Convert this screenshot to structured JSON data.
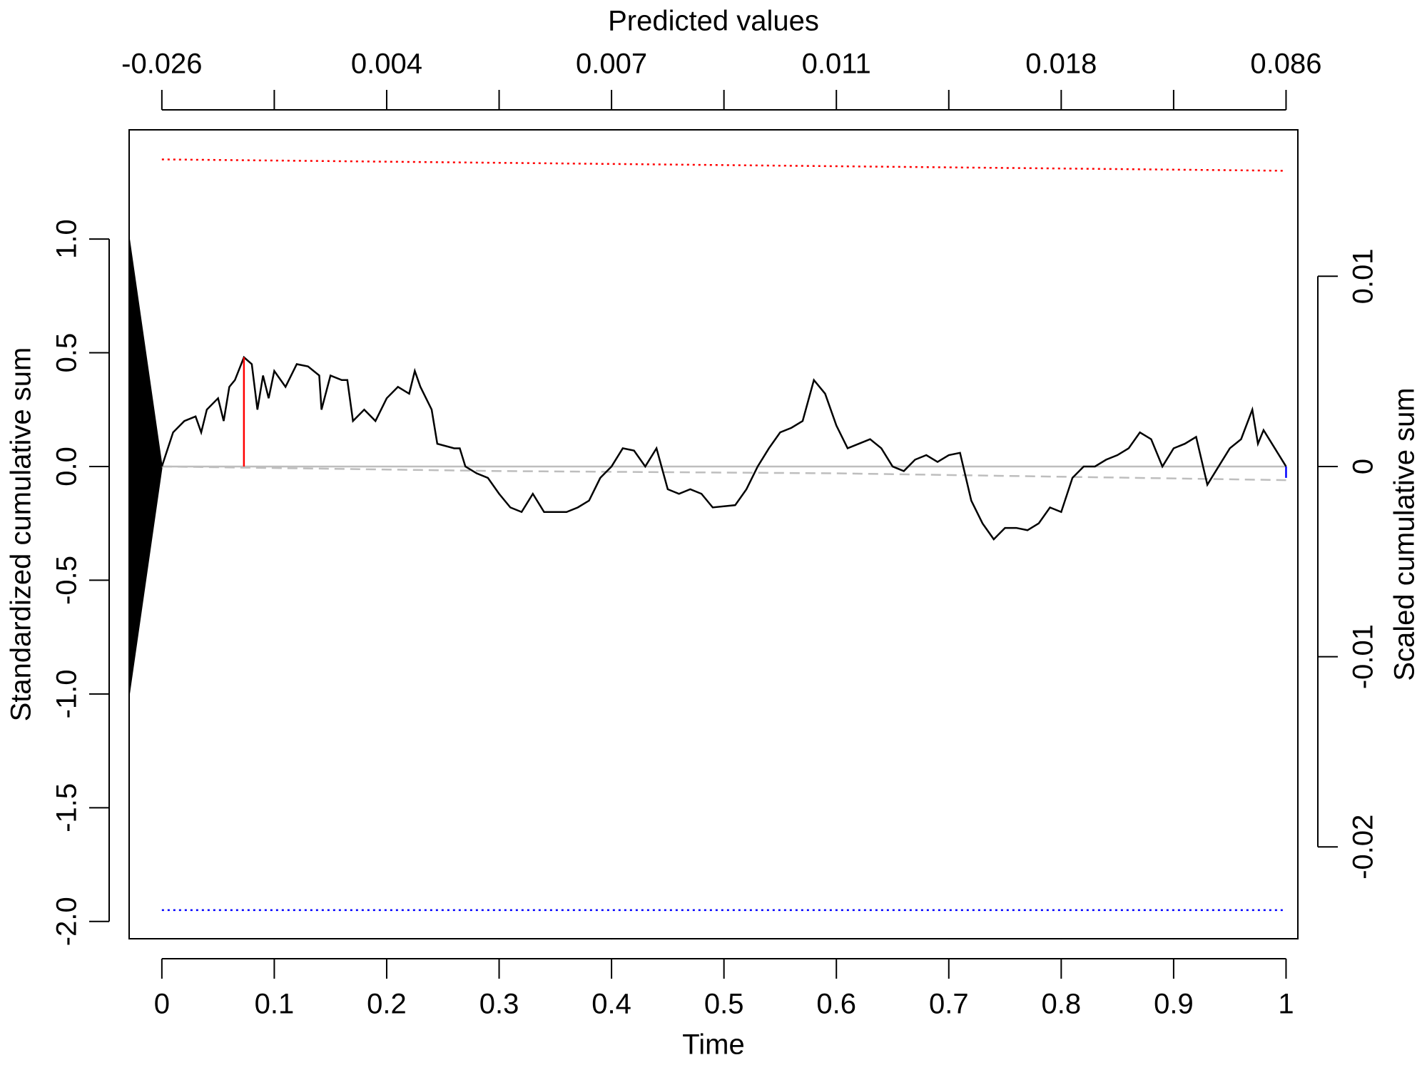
{
  "chart_data": {
    "type": "line",
    "xlabel": "Time",
    "x2label": "Predicted values",
    "ylabel": "Standardized cumulative sum",
    "y2label": "Scaled cumulative sum",
    "xlim": [
      -0.0291,
      1.0105
    ],
    "xticks": [
      0,
      0.1,
      0.2,
      0.3,
      0.4,
      0.5,
      0.6,
      0.7,
      0.8,
      0.9,
      1
    ],
    "x2ticks": [
      {
        "value": 0,
        "label": "-0.026"
      },
      {
        "value": 0.1,
        "label": null
      },
      {
        "value": 0.2,
        "label": "0.004"
      },
      {
        "value": 0.3,
        "label": null
      },
      {
        "value": 0.4,
        "label": "0.007"
      },
      {
        "value": 0.5,
        "label": null
      },
      {
        "value": 0.6,
        "label": "0.011"
      },
      {
        "value": 0.7,
        "label": null
      },
      {
        "value": 0.8,
        "label": "0.018"
      },
      {
        "value": 0.9,
        "label": null
      },
      {
        "value": 1,
        "label": "0.086"
      }
    ],
    "ylim": [
      -2.076,
      1.48
    ],
    "yticks": [
      {
        "value": -2,
        "label": "-2.0"
      },
      {
        "value": -1.5,
        "label": "-1.5"
      },
      {
        "value": -1,
        "label": "-1.0"
      },
      {
        "value": -0.5,
        "label": "-0.5"
      },
      {
        "value": 0,
        "label": "0.0"
      },
      {
        "value": 0.5,
        "label": "0.5"
      },
      {
        "value": 1,
        "label": "1.0"
      }
    ],
    "y2lim": [
      -0.02483,
      0.0177
    ],
    "y2ticks": [
      -0.02,
      -0.01,
      0,
      0.01
    ],
    "series": [
      {
        "color": "#000000",
        "fill": true,
        "x": [
          -0.0291,
          0,
          -0.0291
        ],
        "values": [
          1,
          0,
          -1
        ]
      },
      {
        "color": "#bebebe",
        "dash": "solid",
        "x": [
          0,
          1
        ],
        "values": [
          0,
          0
        ]
      },
      {
        "color": "#bebebe",
        "dash": "dashed",
        "x": [
          0,
          0.3,
          0.6,
          1
        ],
        "values": [
          0,
          -0.02,
          -0.03,
          -0.06
        ]
      },
      {
        "color": "#ff0000",
        "dash": "dotted",
        "x": [
          0,
          1
        ],
        "values": [
          1.35,
          1.3
        ]
      },
      {
        "color": "#0000ff",
        "dash": "dotted",
        "x": [
          0,
          1
        ],
        "values": [
          -1.95,
          -1.95
        ]
      },
      {
        "color": "#000000",
        "dash": "solid",
        "x": [
          0,
          0.01,
          0.02,
          0.03,
          0.035,
          0.04,
          0.05,
          0.055,
          0.06,
          0.065,
          0.073,
          0.08,
          0.085,
          0.09,
          0.095,
          0.1,
          0.11,
          0.12,
          0.13,
          0.14,
          0.142,
          0.15,
          0.16,
          0.165,
          0.17,
          0.18,
          0.19,
          0.2,
          0.21,
          0.22,
          0.225,
          0.23,
          0.24,
          0.245,
          0.26,
          0.265,
          0.27,
          0.28,
          0.29,
          0.3,
          0.31,
          0.32,
          0.33,
          0.34,
          0.36,
          0.37,
          0.38,
          0.39,
          0.4,
          0.41,
          0.42,
          0.43,
          0.44,
          0.45,
          0.46,
          0.47,
          0.48,
          0.49,
          0.51,
          0.52,
          0.53,
          0.54,
          0.55,
          0.56,
          0.57,
          0.58,
          0.59,
          0.6,
          0.61,
          0.62,
          0.63,
          0.64,
          0.65,
          0.66,
          0.67,
          0.68,
          0.69,
          0.7,
          0.71,
          0.72,
          0.73,
          0.74,
          0.75,
          0.76,
          0.77,
          0.78,
          0.79,
          0.8,
          0.81,
          0.82,
          0.83,
          0.84,
          0.85,
          0.86,
          0.87,
          0.88,
          0.89,
          0.9,
          0.91,
          0.92,
          0.93,
          0.94,
          0.95,
          0.96,
          0.97,
          0.975,
          0.98,
          0.99,
          1
        ],
        "values": [
          0,
          0.15,
          0.2,
          0.22,
          0.15,
          0.25,
          0.3,
          0.2,
          0.35,
          0.38,
          0.48,
          0.45,
          0.25,
          0.4,
          0.3,
          0.42,
          0.35,
          0.45,
          0.44,
          0.4,
          0.25,
          0.4,
          0.38,
          0.38,
          0.2,
          0.25,
          0.2,
          0.3,
          0.35,
          0.32,
          0.42,
          0.35,
          0.25,
          0.1,
          0.08,
          0.08,
          0,
          -0.03,
          -0.05,
          -0.12,
          -0.18,
          -0.2,
          -0.12,
          -0.2,
          -0.2,
          -0.18,
          -0.15,
          -0.05,
          0,
          0.08,
          0.07,
          0,
          0.08,
          -0.1,
          -0.12,
          -0.1,
          -0.12,
          -0.18,
          -0.17,
          -0.1,
          0,
          0.08,
          0.15,
          0.17,
          0.2,
          0.38,
          0.32,
          0.18,
          0.08,
          0.1,
          0.12,
          0.08,
          0,
          -0.02,
          0.03,
          0.05,
          0.02,
          0.05,
          0.06,
          -0.15,
          -0.25,
          -0.32,
          -0.27,
          -0.27,
          -0.28,
          -0.25,
          -0.18,
          -0.2,
          -0.05,
          0,
          0,
          0.03,
          0.05,
          0.08,
          0.15,
          0.12,
          0,
          0.08,
          0.1,
          0.13,
          -0.08,
          0,
          0.08,
          0.12,
          0.25,
          0.1,
          0.16,
          0.08,
          0
        ]
      },
      {
        "color": "#ff0000",
        "dash": "solid",
        "x": [
          0.073,
          0.073
        ],
        "values": [
          0,
          0.48
        ]
      },
      {
        "color": "#0000ff",
        "dash": "solid",
        "x": [
          1,
          1
        ],
        "values": [
          0,
          -0.05
        ]
      }
    ]
  }
}
